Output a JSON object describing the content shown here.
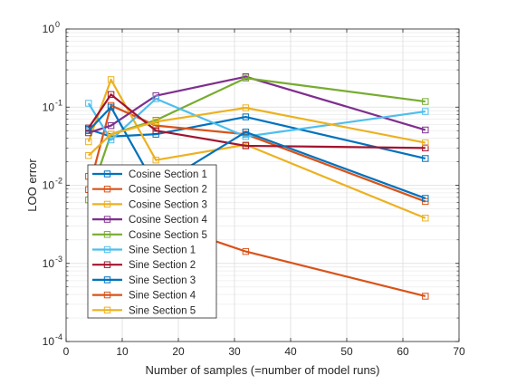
{
  "chart_data": {
    "type": "line",
    "xlabel": "Number of samples (=number of model runs)",
    "ylabel": "LOO error",
    "xlim": [
      0,
      70
    ],
    "ylim": [
      0.0001,
      1
    ],
    "yscale": "log",
    "grid": "on (major and minor)",
    "legend_position": "lower-left",
    "x_ticks": [
      0,
      10,
      20,
      30,
      40,
      50,
      60,
      70
    ],
    "x_tick_labels": [
      "0",
      "10",
      "20",
      "30",
      "40",
      "50",
      "60",
      "70"
    ],
    "y_ticks": [
      0.0001,
      0.001,
      0.01,
      0.1,
      1
    ],
    "y_tick_labels": [
      {
        "base": "10",
        "exp": "-4"
      },
      {
        "base": "10",
        "exp": "-3"
      },
      {
        "base": "10",
        "exp": "-2"
      },
      {
        "base": "10",
        "exp": "-1"
      },
      {
        "base": "10",
        "exp": "0"
      }
    ],
    "x": [
      4,
      8,
      16,
      32,
      64
    ],
    "series": [
      {
        "name": "Cosine Section 1",
        "color": "#0072BD",
        "values": [
          0.052,
          0.042,
          0.045,
          0.075,
          0.022
        ]
      },
      {
        "name": "Cosine Section 2",
        "color": "#D95319",
        "values": [
          0.0088,
          0.105,
          0.058,
          0.045,
          0.0062
        ]
      },
      {
        "name": "Cosine Section 3",
        "color": "#EDB120",
        "values": [
          0.036,
          0.225,
          0.021,
          0.033,
          0.0038
        ]
      },
      {
        "name": "Cosine Section 4",
        "color": "#7E2F8E",
        "values": [
          0.047,
          0.058,
          0.14,
          0.245,
          0.051
        ]
      },
      {
        "name": "Cosine Section 5",
        "color": "#77AC30",
        "values": [
          0.0065,
          0.045,
          0.068,
          0.235,
          0.118
        ]
      },
      {
        "name": "Sine Section 1",
        "color": "#4DBEEE",
        "values": [
          0.112,
          0.038,
          0.128,
          0.042,
          0.088
        ]
      },
      {
        "name": "Sine Section 2",
        "color": "#A2142F",
        "values": [
          0.054,
          0.145,
          0.05,
          0.032,
          0.03
        ]
      },
      {
        "name": "Sine Section 3",
        "color": "#0072BD",
        "values": [
          0.05,
          0.1,
          0.0095,
          0.048,
          0.0068
        ]
      },
      {
        "name": "Sine Section 4",
        "color": "#D95319",
        "values": [
          0.013,
          0.013,
          0.0035,
          0.00142,
          0.00038
        ]
      },
      {
        "name": "Sine Section 5",
        "color": "#EDB120",
        "values": [
          0.024,
          0.045,
          0.065,
          0.098,
          0.035
        ]
      }
    ]
  }
}
